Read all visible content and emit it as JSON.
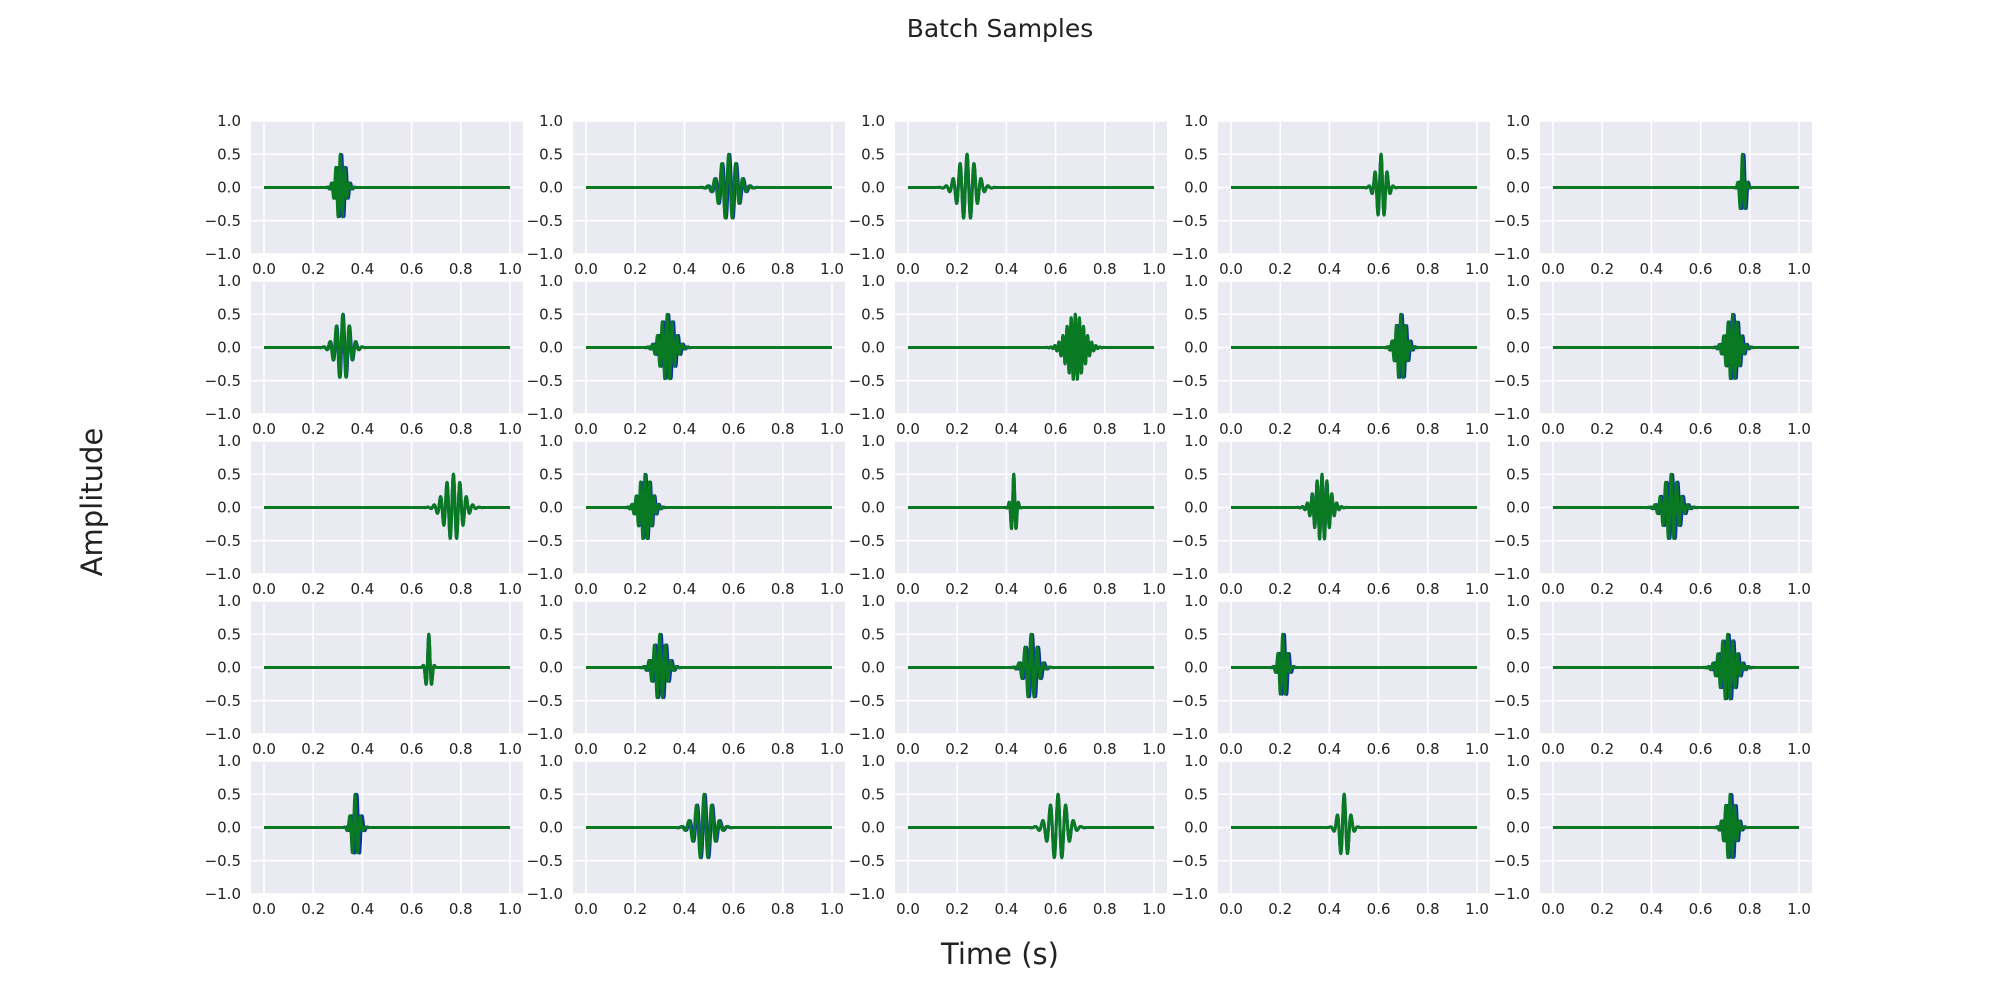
{
  "figure": {
    "title": "Batch Samples",
    "xlabel": "Time (s)",
    "ylabel": "Amplitude"
  },
  "colors": {
    "background": "#eaeaf2",
    "grid": "#ffffff",
    "series_a": "#0c2fb0",
    "series_b": "#0a7a22"
  },
  "chart_data": {
    "type": "line",
    "layout": "grid 5x5",
    "title": "Batch Samples",
    "xlabel": "Time (s)",
    "ylabel": "Amplitude",
    "xlim": [
      0.0,
      1.0
    ],
    "ylim": [
      -1.0,
      1.0
    ],
    "x_ticks": [
      "0.0",
      "0.2",
      "0.4",
      "0.6",
      "0.8",
      "1.0"
    ],
    "y_ticks": [
      "1.0",
      "0.5",
      "0.0",
      "−0.5",
      "−1.0"
    ],
    "grid": true,
    "signal": "gaussian-windowed sinusoid (wave packet), peak amplitude ≈ 0.5",
    "series_colors": [
      "blue",
      "green"
    ],
    "panels": [
      {
        "center": 0.31,
        "width": 0.018,
        "freq": 55,
        "blue_offset": 0.006
      },
      {
        "center": 0.58,
        "width": 0.035,
        "freq": 35,
        "blue_offset": 0.004
      },
      {
        "center": 0.24,
        "width": 0.035,
        "freq": 35,
        "blue_offset": 0.0
      },
      {
        "center": 0.61,
        "width": 0.02,
        "freq": 40,
        "blue_offset": 0.0
      },
      {
        "center": 0.77,
        "width": 0.01,
        "freq": 50,
        "blue_offset": 0.006
      },
      {
        "center": 0.32,
        "width": 0.028,
        "freq": 38,
        "blue_offset": 0.002
      },
      {
        "center": 0.33,
        "width": 0.028,
        "freq": 50,
        "blue_offset": 0.006
      },
      {
        "center": 0.68,
        "width": 0.035,
        "freq": 60,
        "blue_offset": 0.0
      },
      {
        "center": 0.69,
        "width": 0.02,
        "freq": 55,
        "blue_offset": 0.006
      },
      {
        "center": 0.73,
        "width": 0.025,
        "freq": 55,
        "blue_offset": 0.006
      },
      {
        "center": 0.77,
        "width": 0.035,
        "freq": 38,
        "blue_offset": 0.0
      },
      {
        "center": 0.24,
        "width": 0.025,
        "freq": 55,
        "blue_offset": 0.004
      },
      {
        "center": 0.43,
        "width": 0.01,
        "freq": 50,
        "blue_offset": 0.0
      },
      {
        "center": 0.37,
        "width": 0.03,
        "freq": 50,
        "blue_offset": 0.0
      },
      {
        "center": 0.48,
        "width": 0.03,
        "freq": 45,
        "blue_offset": 0.006
      },
      {
        "center": 0.67,
        "width": 0.01,
        "freq": 40,
        "blue_offset": 0.0
      },
      {
        "center": 0.3,
        "width": 0.025,
        "freq": 45,
        "blue_offset": 0.006
      },
      {
        "center": 0.5,
        "width": 0.025,
        "freq": 40,
        "blue_offset": 0.006
      },
      {
        "center": 0.21,
        "width": 0.015,
        "freq": 50,
        "blue_offset": 0.007
      },
      {
        "center": 0.71,
        "width": 0.03,
        "freq": 50,
        "blue_offset": 0.006
      },
      {
        "center": 0.37,
        "width": 0.015,
        "freq": 45,
        "blue_offset": 0.008
      },
      {
        "center": 0.48,
        "width": 0.035,
        "freq": 32,
        "blue_offset": 0.004
      },
      {
        "center": 0.61,
        "width": 0.035,
        "freq": 32,
        "blue_offset": 0.0
      },
      {
        "center": 0.46,
        "width": 0.02,
        "freq": 35,
        "blue_offset": 0.0
      },
      {
        "center": 0.72,
        "width": 0.02,
        "freq": 55,
        "blue_offset": 0.007
      }
    ]
  }
}
